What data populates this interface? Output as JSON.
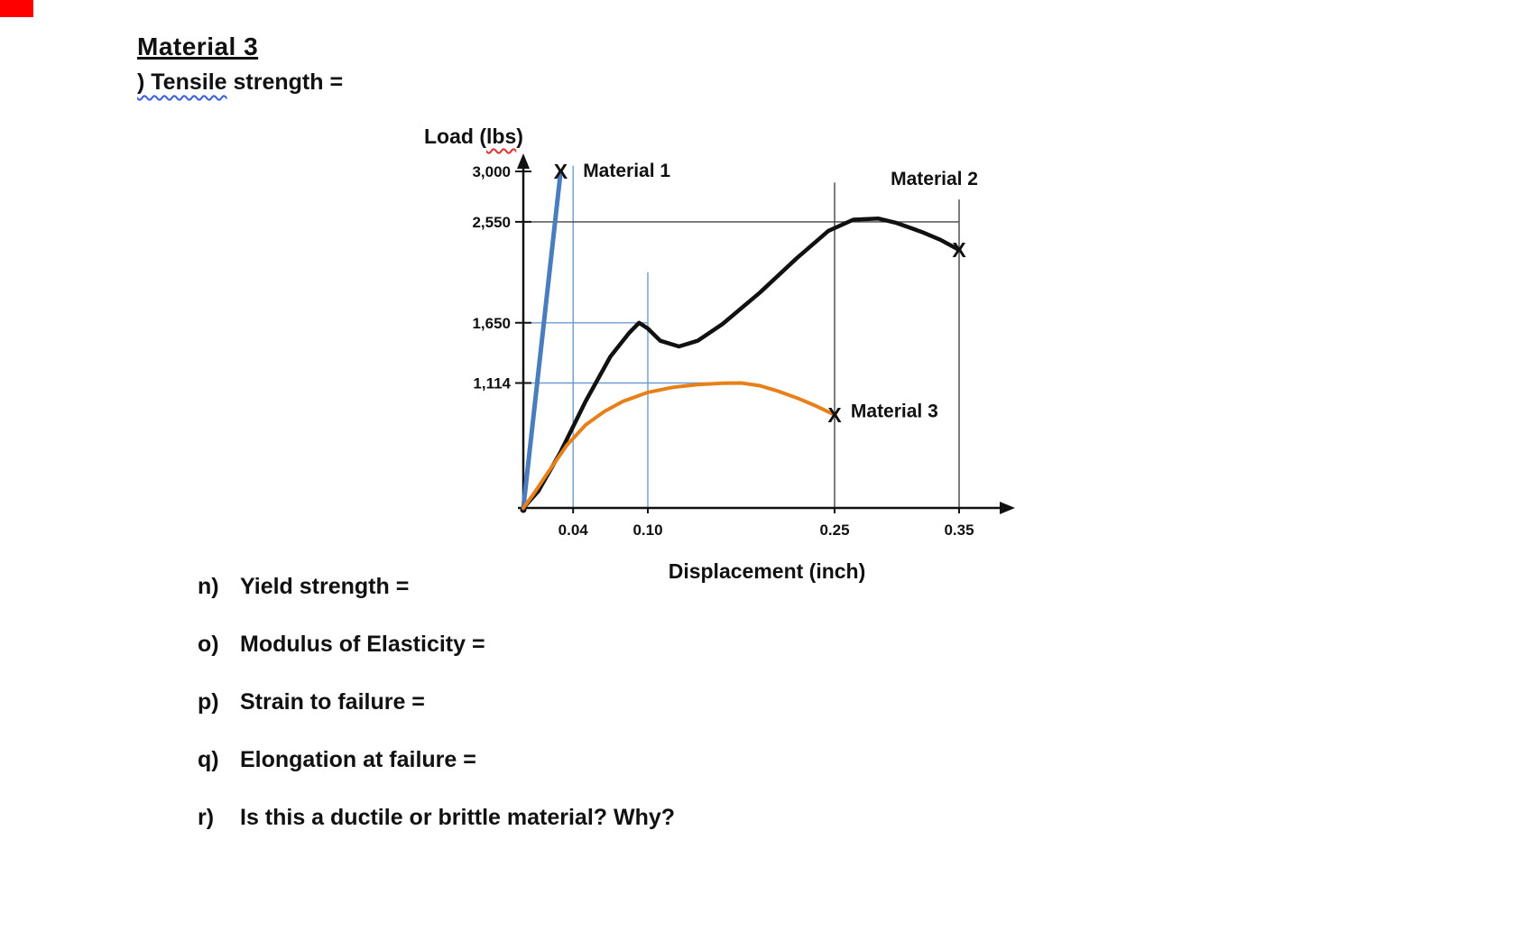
{
  "page": {
    "title": "Material 3",
    "subtitle_marked": ") Tensile",
    "subtitle_rest": " strength ="
  },
  "chart_data": {
    "type": "line",
    "title": "",
    "xlabel": "Displacement (inch)",
    "ylabel": "Load (lbs)",
    "ylabel_parts": {
      "pre": "Load (",
      "marked": "lbs",
      "post": ")"
    },
    "xlim": [
      0,
      0.4
    ],
    "ylim": [
      0,
      3200
    ],
    "grid": "reference-lines-only",
    "legend": "inline-annotations",
    "x_ticks": [
      0.04,
      0.1,
      0.25,
      0.35
    ],
    "x_tick_labels": [
      "0.04",
      "0.10",
      "0.25",
      "0.35"
    ],
    "y_ticks": [
      3000,
      2550,
      1650,
      1114
    ],
    "y_tick_labels": [
      "3,000",
      "2,550",
      "1,650",
      "1,114"
    ],
    "series": [
      {
        "name": "Material 1",
        "color": "#4a7dbe",
        "width": 5,
        "end_marker": true,
        "points": [
          [
            0,
            0
          ],
          [
            0.03,
            3000
          ]
        ]
      },
      {
        "name": "Material 2",
        "color": "#111111",
        "width": 4.5,
        "end_marker": true,
        "points": [
          [
            0,
            0
          ],
          [
            0.012,
            150
          ],
          [
            0.03,
            500
          ],
          [
            0.05,
            950
          ],
          [
            0.07,
            1350
          ],
          [
            0.085,
            1560
          ],
          [
            0.093,
            1650
          ],
          [
            0.1,
            1600
          ],
          [
            0.11,
            1490
          ],
          [
            0.125,
            1440
          ],
          [
            0.14,
            1490
          ],
          [
            0.16,
            1640
          ],
          [
            0.19,
            1920
          ],
          [
            0.22,
            2230
          ],
          [
            0.245,
            2470
          ],
          [
            0.265,
            2570
          ],
          [
            0.285,
            2580
          ],
          [
            0.3,
            2540
          ],
          [
            0.32,
            2460
          ],
          [
            0.335,
            2390
          ],
          [
            0.35,
            2300
          ]
        ]
      },
      {
        "name": "Material 3",
        "color": "#e8801a",
        "width": 4,
        "end_marker": true,
        "points": [
          [
            0,
            0
          ],
          [
            0.008,
            120
          ],
          [
            0.02,
            320
          ],
          [
            0.035,
            560
          ],
          [
            0.05,
            740
          ],
          [
            0.065,
            860
          ],
          [
            0.08,
            950
          ],
          [
            0.1,
            1030
          ],
          [
            0.12,
            1075
          ],
          [
            0.14,
            1100
          ],
          [
            0.16,
            1112
          ],
          [
            0.175,
            1114
          ],
          [
            0.19,
            1090
          ],
          [
            0.205,
            1040
          ],
          [
            0.22,
            980
          ],
          [
            0.235,
            910
          ],
          [
            0.25,
            830
          ]
        ]
      }
    ],
    "reference_lines": [
      {
        "axis": "x",
        "value": 0.04,
        "extent": 3050,
        "color": "#6e9bd2"
      },
      {
        "axis": "x",
        "value": 0.1,
        "extent": 2100,
        "color": "#6e9bd2"
      },
      {
        "axis": "x",
        "value": 0.25,
        "extent": 2900,
        "color": "#444444"
      },
      {
        "axis": "x",
        "value": 0.35,
        "extent": 2750,
        "color": "#444444"
      },
      {
        "axis": "y",
        "value": 2550,
        "extent": 0.35,
        "color": "#444444"
      },
      {
        "axis": "y",
        "value": 1650,
        "extent": 0.1,
        "color": "#6e9bd2"
      },
      {
        "axis": "y",
        "value": 1114,
        "extent": 0.18,
        "color": "#6e9bd2"
      }
    ],
    "annotations": [
      {
        "text": "Material 1",
        "x": 0.048,
        "y": 2950,
        "anchor": "start"
      },
      {
        "text": "Material 2",
        "x": 0.295,
        "y": 2880,
        "anchor": "start"
      },
      {
        "text": "Material 3",
        "x": 0.263,
        "y": 810,
        "anchor": "start"
      }
    ]
  },
  "questions": {
    "items": [
      {
        "letter": "n)",
        "text": "Yield strength ="
      },
      {
        "letter": "o)",
        "text": "Modulus of Elasticity ="
      },
      {
        "letter": "p)",
        "text": "Strain to failure ="
      },
      {
        "letter": "q)",
        "text": "Elongation at failure ="
      },
      {
        "letter": "r)",
        "text": "Is this a ductile or brittle material? Why?"
      }
    ]
  }
}
